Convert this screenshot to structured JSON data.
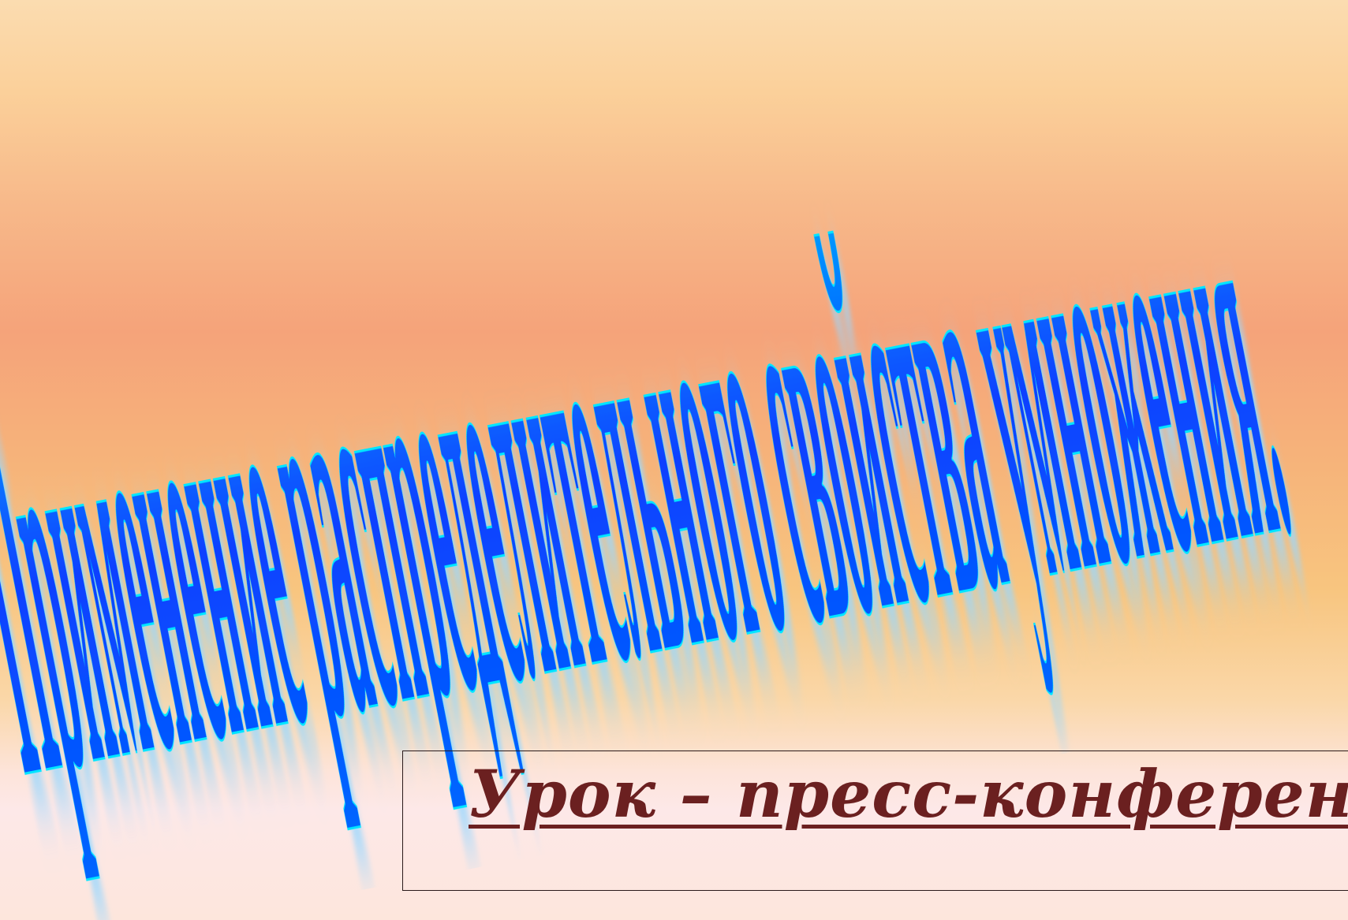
{
  "slide": {
    "title_line": "Применение распределительного свойства умножения.",
    "subtitle": "Урок – пресс-конференция"
  },
  "colors": {
    "wordart_fill": "#0a40ff",
    "wordart_outline": "#00e5ff",
    "wordart_glow": "#9ad8ff",
    "subtitle_color": "#6b2020",
    "frame_border": "#2a1a1a"
  }
}
